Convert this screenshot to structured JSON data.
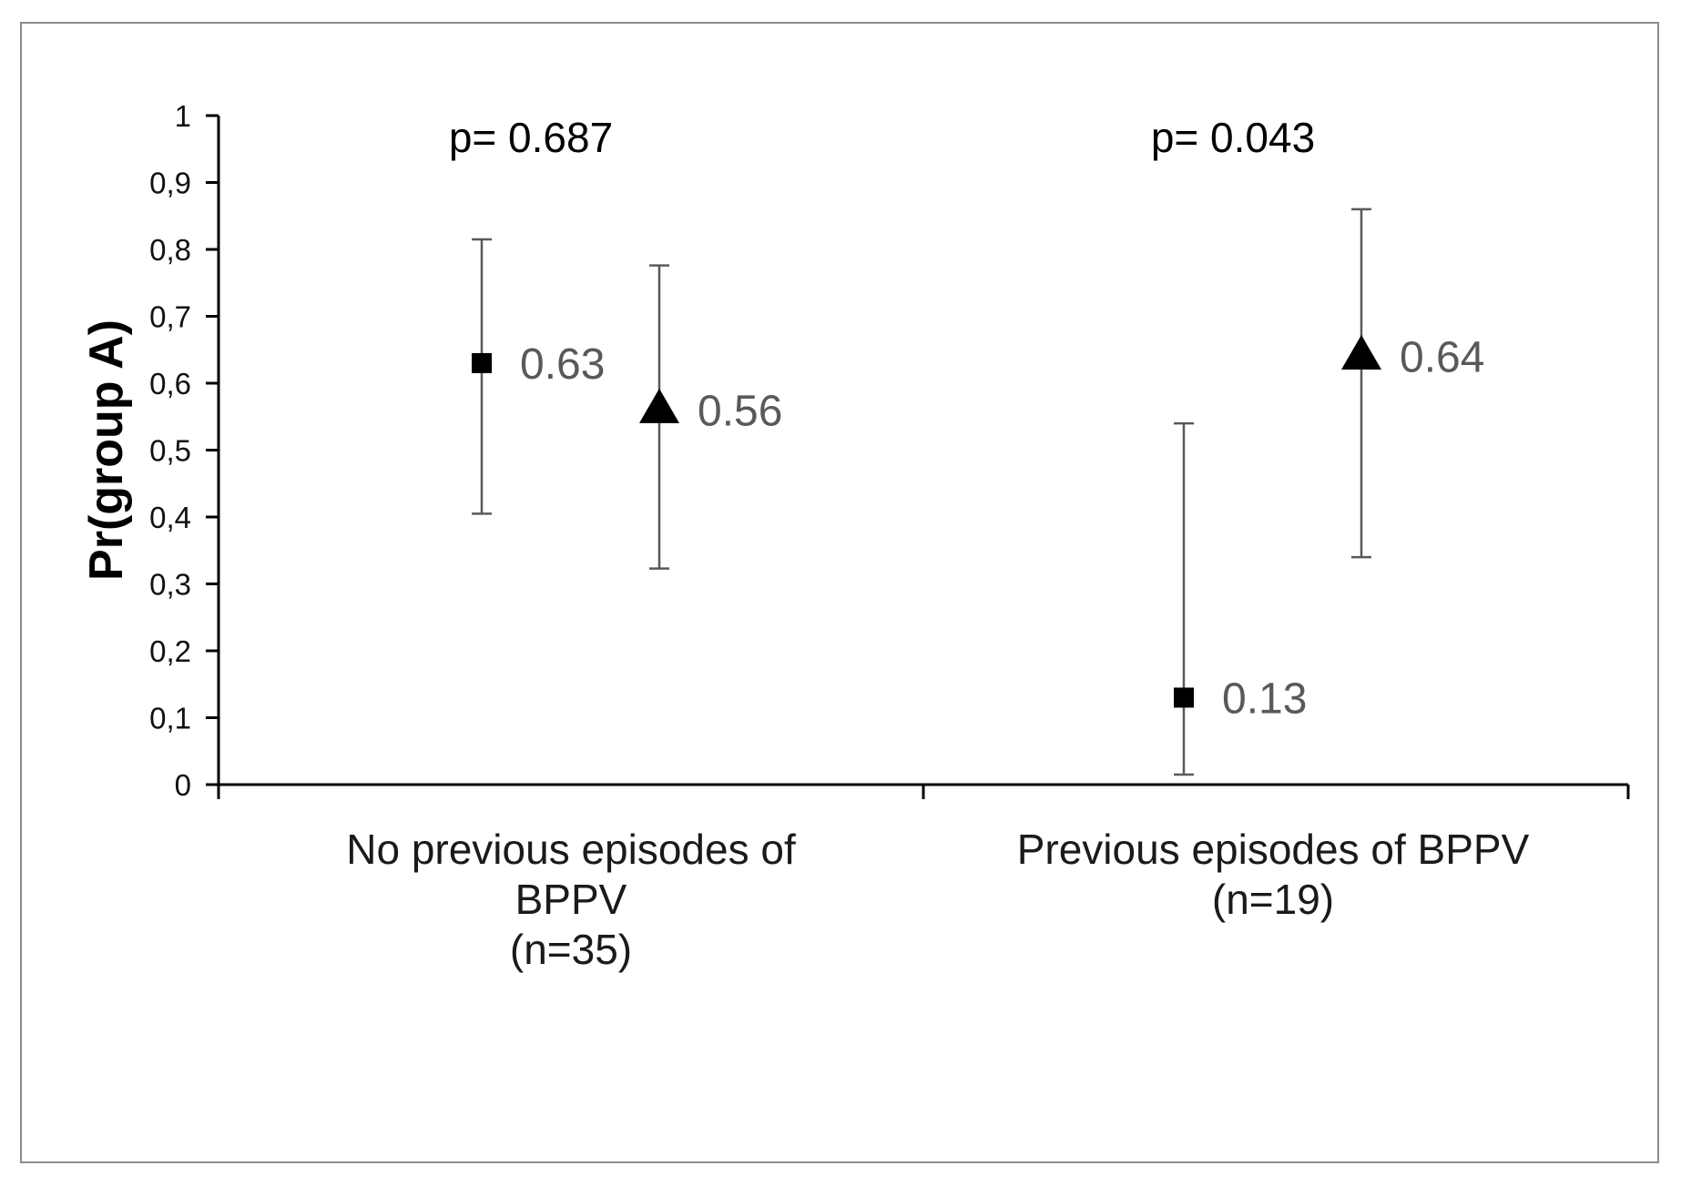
{
  "chart_data": {
    "type": "scatter",
    "ylabel": "Pr(group A)",
    "ylim": [
      0,
      1
    ],
    "yticks": [
      0,
      0.1,
      0.2,
      0.3,
      0.4,
      0.5,
      0.6,
      0.7,
      0.8,
      0.9,
      1
    ],
    "ytick_labels": [
      "0",
      "0,1",
      "0,2",
      "0,3",
      "0,4",
      "0,5",
      "0,6",
      "0,7",
      "0,8",
      "0,9",
      "1"
    ],
    "categories": [
      [
        "No previous episodes of",
        "BPPV",
        "(n=35)"
      ],
      [
        "Previous episodes of BPPV",
        "(n=19)"
      ]
    ],
    "annotations": [
      "p= 0.687",
      "p= 0.043"
    ],
    "grid": false,
    "legend": "none",
    "series": [
      {
        "marker": "square",
        "values": [
          0.63,
          0.13
        ],
        "lower": [
          0.405,
          0.015
        ],
        "upper": [
          0.815,
          0.54
        ],
        "labels": [
          "0.63",
          "0.13"
        ]
      },
      {
        "marker": "triangle",
        "values": [
          0.56,
          0.64
        ],
        "lower": [
          0.323,
          0.34
        ],
        "upper": [
          0.776,
          0.86
        ],
        "labels": [
          "0.56",
          "0.64"
        ]
      }
    ]
  }
}
